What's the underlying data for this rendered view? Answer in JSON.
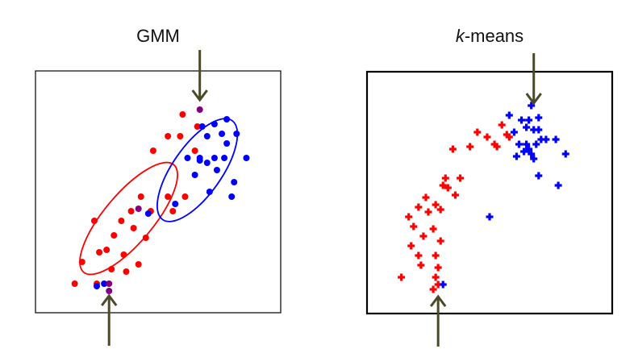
{
  "chart_data": [
    {
      "type": "scatter",
      "title": "GMM",
      "xlim": [
        0,
        100
      ],
      "ylim": [
        0,
        100
      ],
      "grid": false,
      "legend": "none",
      "colors": {
        "red": "#ff0000",
        "blue": "#0000ff",
        "purple": "#800080",
        "arrow": "#4a4a2a"
      },
      "series": [
        {
          "color": "red",
          "points": [
            [
              60,
              82
            ],
            [
              66,
              77
            ],
            [
              54,
              73
            ],
            [
              59,
              73
            ],
            [
              48,
              67
            ],
            [
              65,
              67
            ],
            [
              54,
              48
            ],
            [
              43,
              48
            ],
            [
              61,
              48
            ],
            [
              39,
              42
            ],
            [
              47,
              42
            ],
            [
              56,
              42
            ],
            [
              24,
              38
            ],
            [
              35,
              38
            ],
            [
              40,
              35
            ],
            [
              32,
              32
            ],
            [
              45,
              31
            ],
            [
              29,
              26
            ],
            [
              36,
              24
            ],
            [
              26,
              25
            ],
            [
              31,
              18
            ],
            [
              42,
              20
            ],
            [
              25,
              12
            ],
            [
              37,
              17
            ],
            [
              19,
              21
            ],
            [
              16,
              12
            ]
          ]
        },
        {
          "color": "blue",
          "points": [
            [
              78,
              80
            ],
            [
              73,
              78
            ],
            [
              68,
              77
            ],
            [
              76,
              74
            ],
            [
              82,
              74
            ],
            [
              70,
              73
            ],
            [
              78,
              70
            ],
            [
              62,
              64
            ],
            [
              67,
              64
            ],
            [
              73,
              64
            ],
            [
              77,
              64
            ],
            [
              70,
              62
            ],
            [
              67,
              63
            ],
            [
              86,
              64
            ],
            [
              74,
              59
            ],
            [
              65,
              57
            ],
            [
              57,
              45
            ],
            [
              80,
              48
            ],
            [
              81,
              54
            ],
            [
              71,
              50
            ],
            [
              25,
              11
            ],
            [
              46,
              41
            ],
            [
              28,
              12
            ]
          ]
        },
        {
          "color": "purple",
          "points": [
            [
              67,
              84
            ],
            [
              42,
              43
            ],
            [
              30,
              12
            ],
            [
              30,
              9
            ]
          ]
        }
      ],
      "ellipses": [
        {
          "color": "red",
          "cx": 38,
          "cy": 39,
          "rx": 10,
          "ry": 29,
          "rotation_deg": 40
        },
        {
          "color": "blue",
          "cx": 66,
          "cy": 59,
          "rx": 10,
          "ry": 25,
          "rotation_deg": 35
        }
      ],
      "arrows": [
        {
          "direction": "down",
          "tip": [
            67,
            88
          ]
        },
        {
          "direction": "up",
          "tip": [
            30,
            7
          ]
        }
      ]
    },
    {
      "type": "scatter",
      "title_prefix": "k",
      "title_suffix": "-means",
      "xlim": [
        0,
        100
      ],
      "ylim": [
        0,
        100
      ],
      "grid": false,
      "legend": "none",
      "colors": {
        "red": "#ff0000",
        "blue": "#0000ff",
        "arrow": "#4a4a2a"
      },
      "series": [
        {
          "color": "red",
          "points": [
            [
              55,
              78
            ],
            [
              57,
              74
            ],
            [
              58,
              73
            ],
            [
              45,
              75
            ],
            [
              49,
              73
            ],
            [
              52,
              70
            ],
            [
              42,
              69
            ],
            [
              53,
              69
            ],
            [
              35,
              68
            ],
            [
              32,
              56
            ],
            [
              38,
              56
            ],
            [
              31,
              53
            ],
            [
              33,
              52
            ],
            [
              36,
              49
            ],
            [
              24,
              48
            ],
            [
              28,
              45
            ],
            [
              30,
              43
            ],
            [
              21,
              44
            ],
            [
              25,
              42
            ],
            [
              17,
              40
            ],
            [
              19,
              36
            ],
            [
              27,
              35
            ],
            [
              23,
              32
            ],
            [
              30,
              30
            ],
            [
              18,
              28
            ],
            [
              21,
              24
            ],
            [
              28,
              24
            ],
            [
              22,
              20
            ],
            [
              29,
              19
            ],
            [
              14,
              15
            ],
            [
              28,
              15
            ],
            [
              29,
              12
            ],
            [
              27,
              10
            ]
          ]
        },
        {
          "color": "blue",
          "points": [
            [
              67,
              86
            ],
            [
              58,
              82
            ],
            [
              66,
              80
            ],
            [
              70,
              81
            ],
            [
              63,
              80
            ],
            [
              65,
              77
            ],
            [
              68,
              76
            ],
            [
              70,
              76
            ],
            [
              60,
              75
            ],
            [
              71,
              72
            ],
            [
              65,
              70
            ],
            [
              69,
              70
            ],
            [
              73,
              72
            ],
            [
              62,
              70
            ],
            [
              64,
              67
            ],
            [
              67,
              66
            ],
            [
              77,
              72
            ],
            [
              66,
              68
            ],
            [
              68,
              64
            ],
            [
              61,
              65
            ],
            [
              70,
              57
            ],
            [
              81,
              66
            ],
            [
              78,
              53
            ],
            [
              50,
              40
            ],
            [
              31,
              12
            ]
          ]
        }
      ],
      "arrows": [
        {
          "direction": "down",
          "tip": [
            68,
            87
          ]
        },
        {
          "direction": "up",
          "tip": [
            29,
            7
          ]
        }
      ]
    }
  ]
}
